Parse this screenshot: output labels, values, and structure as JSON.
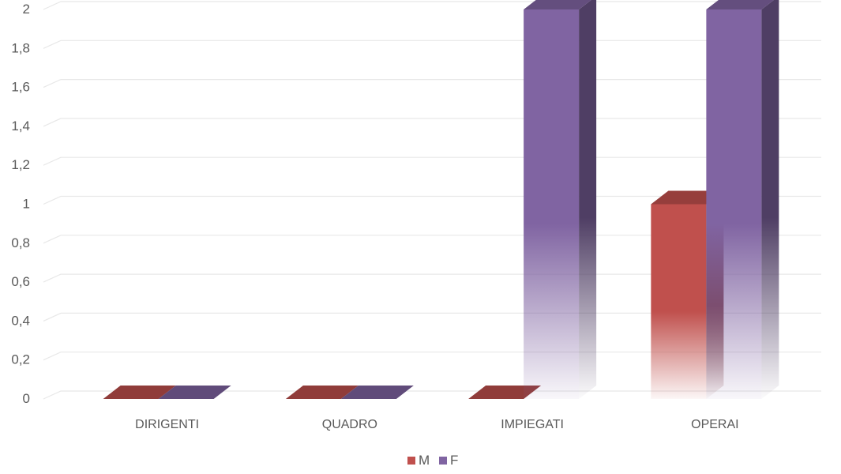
{
  "chart_data": {
    "type": "bar",
    "categories": [
      "DIRIGENTI",
      "QUADRO",
      "IMPIEGATI",
      "OPERAI"
    ],
    "series": [
      {
        "name": "M",
        "values": [
          0,
          0,
          0,
          1
        ],
        "color": "#C0504D"
      },
      {
        "name": "F",
        "values": [
          0,
          0,
          2,
          2
        ],
        "color": "#8064A2"
      }
    ],
    "ylim": [
      0,
      2
    ],
    "y_ticks": [
      0,
      0.2,
      0.4,
      0.6,
      0.8,
      1,
      1.2,
      1.4,
      1.6,
      1.8,
      2
    ],
    "y_tick_labels": [
      "0",
      "0,2",
      "0,4",
      "0,6",
      "0,8",
      "1",
      "1,2",
      "1,4",
      "1,6",
      "1,8",
      "2"
    ],
    "title": "",
    "xlabel": "",
    "ylabel": "",
    "grid": true,
    "legend_position": "bottom",
    "style": "3d-gradient-column"
  }
}
